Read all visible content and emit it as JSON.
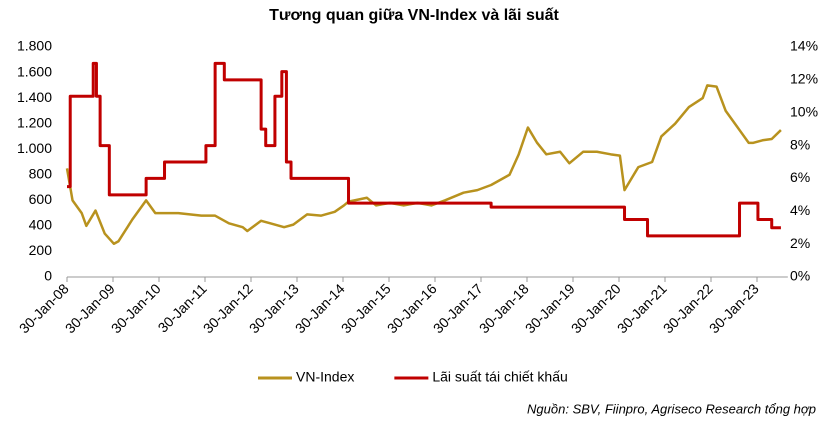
{
  "chart_data": {
    "type": "line",
    "title": "Tương quan giữa VN-Index và lãi suất",
    "source": "Nguồn: SBV, Fiinpro, Agriseco Research tổng hợp",
    "xlim": [
      2008.08,
      2023.75
    ],
    "xticks": [
      {
        "value": 2008.08,
        "label": "30-Jan-08"
      },
      {
        "value": 2009.08,
        "label": "30-Jan-09"
      },
      {
        "value": 2010.08,
        "label": "30-Jan-10"
      },
      {
        "value": 2011.08,
        "label": "30-Jan-11"
      },
      {
        "value": 2012.08,
        "label": "30-Jan-12"
      },
      {
        "value": 2013.08,
        "label": "30-Jan-13"
      },
      {
        "value": 2014.08,
        "label": "30-Jan-14"
      },
      {
        "value": 2015.08,
        "label": "30-Jan-15"
      },
      {
        "value": 2016.08,
        "label": "30-Jan-16"
      },
      {
        "value": 2017.08,
        "label": "30-Jan-17"
      },
      {
        "value": 2018.08,
        "label": "30-Jan-18"
      },
      {
        "value": 2019.08,
        "label": "30-Jan-19"
      },
      {
        "value": 2020.08,
        "label": "30-Jan-20"
      },
      {
        "value": 2021.08,
        "label": "30-Jan-21"
      },
      {
        "value": 2022.08,
        "label": "30-Jan-22"
      },
      {
        "value": 2023.08,
        "label": "30-Jan-23"
      }
    ],
    "ylim": [
      0,
      1800
    ],
    "yticks": [
      0,
      200,
      400,
      600,
      800,
      {
        "value": 1000,
        "label": "1.000"
      },
      {
        "value": 1200,
        "label": "1.200"
      },
      {
        "value": 1400,
        "label": "1.400"
      },
      {
        "value": 1600,
        "label": "1.600"
      },
      {
        "value": 1800,
        "label": "1.800"
      }
    ],
    "y2lim": [
      0,
      14
    ],
    "y2ticks": [
      {
        "value": 0,
        "label": "0%"
      },
      {
        "value": 2,
        "label": "2%"
      },
      {
        "value": 4,
        "label": "4%"
      },
      {
        "value": 6,
        "label": "6%"
      },
      {
        "value": 8,
        "label": "8%"
      },
      {
        "value": 10,
        "label": "10%"
      },
      {
        "value": 12,
        "label": "12%"
      },
      {
        "value": 14,
        "label": "14%"
      }
    ],
    "series": [
      {
        "name": "VN-Index",
        "color": "#b8921e",
        "x": [
          2008.08,
          2008.2,
          2008.4,
          2008.5,
          2008.7,
          2008.9,
          2009.1,
          2009.2,
          2009.5,
          2009.8,
          2010.0,
          2010.5,
          2011.0,
          2011.3,
          2011.6,
          2011.9,
          2012.0,
          2012.3,
          2012.5,
          2012.8,
          2013.0,
          2013.3,
          2013.6,
          2013.9,
          2014.1,
          2014.2,
          2014.6,
          2014.8,
          2015.1,
          2015.4,
          2015.7,
          2016.0,
          2016.3,
          2016.7,
          2017.0,
          2017.3,
          2017.7,
          2017.9,
          2018.1,
          2018.3,
          2018.5,
          2018.8,
          2019.0,
          2019.3,
          2019.6,
          2019.9,
          2020.1,
          2020.2,
          2020.5,
          2020.8,
          2021.0,
          2021.3,
          2021.6,
          2021.9,
          2022.0,
          2022.2,
          2022.4,
          2022.7,
          2022.9,
          2023.0,
          2023.2,
          2023.4,
          2023.6
        ],
        "values": [
          850,
          600,
          500,
          400,
          520,
          340,
          260,
          280,
          450,
          600,
          500,
          500,
          480,
          480,
          420,
          390,
          360,
          440,
          420,
          390,
          410,
          490,
          480,
          510,
          560,
          590,
          620,
          560,
          580,
          560,
          580,
          560,
          600,
          660,
          680,
          720,
          800,
          960,
          1170,
          1050,
          960,
          980,
          890,
          980,
          980,
          960,
          950,
          680,
          860,
          900,
          1100,
          1200,
          1330,
          1400,
          1500,
          1490,
          1300,
          1150,
          1050,
          1050,
          1070,
          1080,
          1150
        ]
      },
      {
        "name": "Lãi suất tái chiết khấu",
        "color": "#c00000",
        "axis": "y2",
        "x": [
          2008.08,
          2008.15,
          2008.15,
          2008.65,
          2008.65,
          2008.72,
          2008.72,
          2008.8,
          2008.8,
          2009.0,
          2009.0,
          2009.8,
          2009.8,
          2010.2,
          2010.2,
          2011.1,
          2011.1,
          2011.3,
          2011.3,
          2011.5,
          2011.5,
          2012.3,
          2012.3,
          2012.4,
          2012.4,
          2012.6,
          2012.6,
          2012.75,
          2012.75,
          2012.85,
          2012.85,
          2012.95,
          2012.95,
          2014.2,
          2014.2,
          2017.3,
          2017.3,
          2020.2,
          2020.2,
          2020.7,
          2020.7,
          2022.7,
          2022.7,
          2023.1,
          2023.1,
          2023.4,
          2023.4,
          2023.6
        ],
        "values": [
          5.5,
          5.5,
          11,
          11,
          13,
          13,
          11,
          11,
          8,
          8,
          5,
          5,
          6,
          6,
          7,
          7,
          8,
          8,
          13,
          13,
          12,
          12,
          9,
          9,
          8,
          8,
          11,
          11,
          12.5,
          12.5,
          7,
          7,
          6,
          6,
          4.5,
          4.5,
          4.25,
          4.25,
          3.5,
          3.5,
          2.5,
          2.5,
          4.5,
          4.5,
          3.5,
          3.5,
          3,
          3
        ]
      }
    ]
  }
}
